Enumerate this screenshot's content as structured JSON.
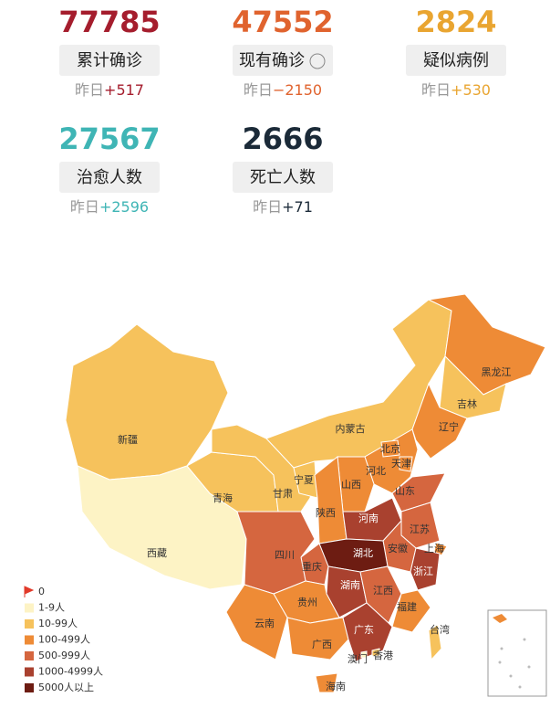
{
  "stats": [
    {
      "value": "77785",
      "label": "累计确诊",
      "delta_prefix": "昨日",
      "delta": "+517",
      "color": "#a51d2d"
    },
    {
      "value": "47552",
      "label": "现有确诊",
      "delta_prefix": "昨日",
      "delta": "−2150",
      "color": "#e0632e"
    },
    {
      "value": "2824",
      "label": "疑似病例",
      "delta_prefix": "昨日",
      "delta": "+530",
      "color": "#e9a531"
    },
    {
      "value": "27567",
      "label": "治愈人数",
      "delta_prefix": "昨日",
      "delta": "+2596",
      "color": "#3fb5b5"
    },
    {
      "value": "2666",
      "label": "死亡人数",
      "delta_prefix": "昨日",
      "delta": "+71",
      "color": "#1b2a38"
    }
  ],
  "map": {
    "legend": [
      {
        "label": "0",
        "color": "#e23a2a"
      },
      {
        "label": "1-9人",
        "color": "#fdf3c5"
      },
      {
        "label": "10-99人",
        "color": "#f6c25c"
      },
      {
        "label": "100-499人",
        "color": "#ee8b36"
      },
      {
        "label": "500-999人",
        "color": "#d5663f"
      },
      {
        "label": "1000-4999人",
        "color": "#a9412f"
      },
      {
        "label": "5000人以上",
        "color": "#6d1c12"
      }
    ],
    "provinces": [
      {
        "name": "新疆",
        "level": 2
      },
      {
        "name": "西藏",
        "level": 1
      },
      {
        "name": "青海",
        "level": 2
      },
      {
        "name": "甘肃",
        "level": 2
      },
      {
        "name": "内蒙古",
        "level": 2
      },
      {
        "name": "黑龙江",
        "level": 3
      },
      {
        "name": "吉林",
        "level": 2
      },
      {
        "name": "辽宁",
        "level": 3
      },
      {
        "name": "河北",
        "level": 3
      },
      {
        "name": "北京",
        "level": 3
      },
      {
        "name": "天津",
        "level": 3
      },
      {
        "name": "山西",
        "level": 3
      },
      {
        "name": "宁夏",
        "level": 2
      },
      {
        "name": "陕西",
        "level": 3
      },
      {
        "name": "山东",
        "level": 4
      },
      {
        "name": "河南",
        "level": 5
      },
      {
        "name": "江苏",
        "level": 4
      },
      {
        "name": "安徽",
        "level": 4
      },
      {
        "name": "上海",
        "level": 3
      },
      {
        "name": "浙江",
        "level": 5
      },
      {
        "name": "湖北",
        "level": 6
      },
      {
        "name": "重庆",
        "level": 4
      },
      {
        "name": "四川",
        "level": 4
      },
      {
        "name": "湖南",
        "level": 5
      },
      {
        "name": "江西",
        "level": 4
      },
      {
        "name": "福建",
        "level": 3
      },
      {
        "name": "贵州",
        "level": 3
      },
      {
        "name": "云南",
        "level": 3
      },
      {
        "name": "广西",
        "level": 3
      },
      {
        "name": "广东",
        "level": 5
      },
      {
        "name": "海南",
        "level": 3
      },
      {
        "name": "台湾",
        "level": 2
      },
      {
        "name": "香港",
        "level": 2
      },
      {
        "name": "澳门",
        "level": 1
      }
    ]
  }
}
